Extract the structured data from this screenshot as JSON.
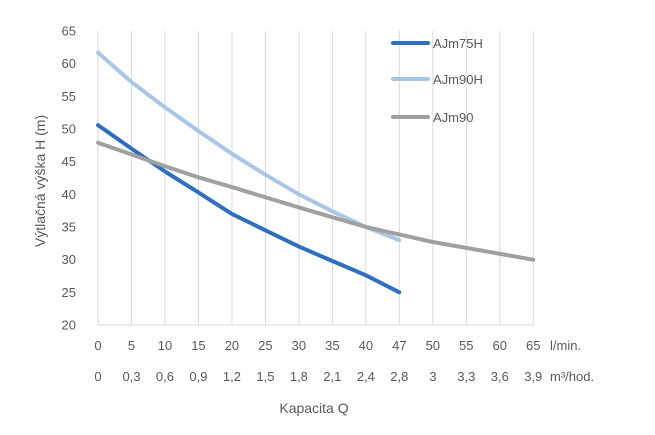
{
  "chart_data": {
    "type": "line",
    "title": "",
    "xlabel": "Kapacita Q",
    "ylabel": "Výtlačná výška H (m)",
    "x_unit_primary": "l/min.",
    "x_unit_secondary": "m³/hod.",
    "x_categories": [
      "0",
      "5",
      "10",
      "15",
      "20",
      "25",
      "30",
      "35",
      "40",
      "47",
      "50",
      "55",
      "60",
      "65"
    ],
    "x_secondary_categories": [
      "0",
      "0,3",
      "0,6",
      "0,9",
      "1,2",
      "1,5",
      "1,8",
      "2,1",
      "2,4",
      "2,8",
      "3",
      "3,3",
      "3,6",
      "3,9"
    ],
    "ylim": [
      20,
      65
    ],
    "y_ticks": [
      "20",
      "25",
      "30",
      "35",
      "40",
      "45",
      "50",
      "55",
      "60",
      "65"
    ],
    "grid": "vertical",
    "legend_position": "top-right",
    "series": [
      {
        "name": "AJm75H",
        "color": "#2e6fbf",
        "x": [
          0,
          5,
          10,
          15,
          20,
          25,
          30,
          35,
          40,
          47
        ],
        "y": [
          50.6,
          47.0,
          43.5,
          40.3,
          37.0,
          34.5,
          32.0,
          29.8,
          27.6,
          25.0
        ]
      },
      {
        "name": "AJm90H",
        "color": "#a9c6e6",
        "x": [
          0,
          5,
          10,
          15,
          20,
          25,
          30,
          35,
          40,
          47
        ],
        "y": [
          61.7,
          57.2,
          53.3,
          49.7,
          46.2,
          43.0,
          40.0,
          37.4,
          35.0,
          33.0
        ]
      },
      {
        "name": "AJm90",
        "color": "#a0a0a0",
        "x": [
          0,
          10,
          15,
          20,
          30,
          40,
          50,
          65
        ],
        "y": [
          47.9,
          44.3,
          42.6,
          41.1,
          38.0,
          35.0,
          32.7,
          30.0
        ]
      }
    ]
  }
}
